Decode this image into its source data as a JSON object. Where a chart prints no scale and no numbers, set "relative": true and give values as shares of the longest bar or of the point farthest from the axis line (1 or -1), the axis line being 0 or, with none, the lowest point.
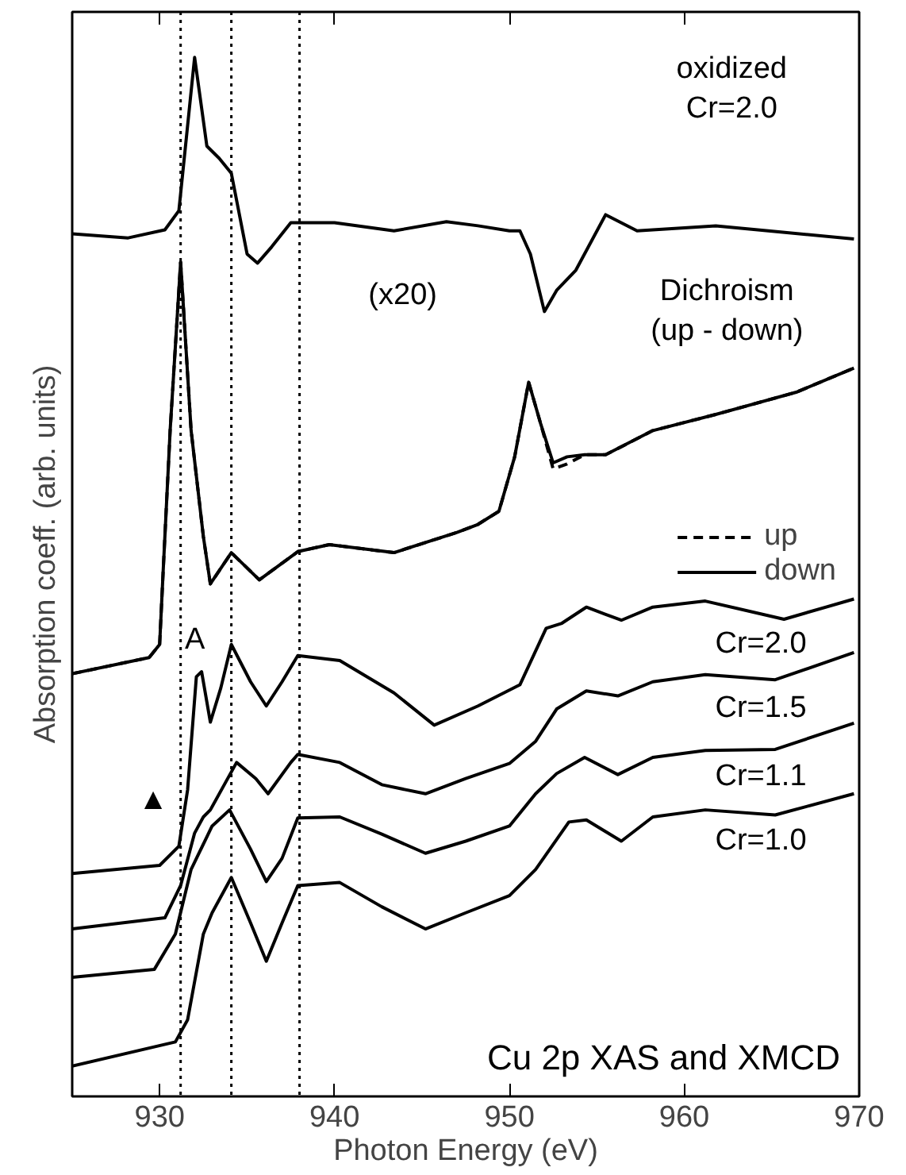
{
  "chart_data": {
    "type": "line",
    "relative": true,
    "xlabel": "Photon Energy (eV)",
    "ylabel": "Absorption coeff. (arb. units)",
    "xlim": [
      925,
      970
    ],
    "xticks": [
      930,
      940,
      950,
      960,
      970
    ],
    "grid": false,
    "legend": "right",
    "tick_labels": "x",
    "line_style": "solid",
    "series": [
      {
        "color": "#000000",
        "x": [
          925.0,
          928.2,
          930.3,
          931.1,
          932.0,
          932.7,
          933.4,
          934.1,
          935.0,
          935.6,
          936.4,
          937.5,
          940.0,
          943.4,
          946.4,
          948.2,
          950.0,
          950.6,
          951.2,
          952.0,
          952.7,
          953.8,
          955.5,
          957.3,
          961.8,
          964.8,
          969.7
        ],
        "values": [
          0.825,
          0.821,
          0.829,
          0.848,
          1.0,
          0.912,
          0.9,
          0.885,
          0.805,
          0.796,
          0.812,
          0.836,
          0.836,
          0.828,
          0.837,
          0.833,
          0.828,
          0.828,
          0.805,
          0.748,
          0.769,
          0.789,
          0.844,
          0.828,
          0.833,
          0.828,
          0.82
        ]
      },
      {
        "name": "up",
        "color": "#000000",
        "line_style": "dashed",
        "x": [
          925.0,
          929.4,
          930.0,
          930.2,
          930.6,
          931.2,
          931.8,
          932.5,
          932.9,
          934.1,
          935.7,
          937.9,
          939.7,
          943.4,
          947.0,
          948.2,
          949.4,
          950.3,
          951.1,
          951.8,
          952.5,
          953.3,
          954.3,
          955.5,
          958.2,
          961.8,
          966.4,
          969.7
        ],
        "values": [
          0.389,
          0.405,
          0.418,
          0.49,
          0.63,
          0.797,
          0.63,
          0.525,
          0.478,
          0.509,
          0.482,
          0.51,
          0.517,
          0.509,
          0.529,
          0.537,
          0.55,
          0.604,
          0.678,
          0.636,
          0.592,
          0.597,
          0.606,
          0.606,
          0.63,
          0.646,
          0.668,
          0.692
        ]
      },
      {
        "name": "down",
        "color": "#000000",
        "line_style": "solid",
        "x": [
          925.0,
          929.4,
          930.0,
          930.2,
          930.6,
          931.2,
          931.8,
          932.5,
          932.9,
          934.1,
          935.7,
          937.9,
          939.7,
          943.4,
          947.0,
          948.2,
          949.4,
          950.3,
          951.1,
          951.8,
          952.5,
          953.3,
          954.3,
          955.5,
          958.2,
          961.8,
          966.4,
          969.7
        ],
        "values": [
          0.389,
          0.405,
          0.418,
          0.49,
          0.63,
          0.797,
          0.63,
          0.525,
          0.478,
          0.509,
          0.482,
          0.51,
          0.517,
          0.509,
          0.529,
          0.537,
          0.55,
          0.604,
          0.678,
          0.636,
          0.598,
          0.604,
          0.606,
          0.606,
          0.63,
          0.646,
          0.668,
          0.692
        ]
      },
      {
        "color": "#000000",
        "x": [
          925.0,
          930.0,
          931.1,
          931.6,
          932.1,
          932.4,
          932.9,
          933.5,
          934.1,
          935.2,
          936.1,
          937.0,
          937.9,
          940.3,
          943.4,
          945.7,
          948.2,
          950.6,
          952.1,
          953.0,
          954.4,
          956.4,
          958.2,
          961.2,
          965.7,
          969.7
        ],
        "values": [
          0.191,
          0.199,
          0.218,
          0.274,
          0.386,
          0.391,
          0.341,
          0.375,
          0.418,
          0.381,
          0.357,
          0.381,
          0.407,
          0.402,
          0.37,
          0.338,
          0.357,
          0.378,
          0.434,
          0.439,
          0.455,
          0.442,
          0.455,
          0.461,
          0.443,
          0.463
        ]
      },
      {
        "color": "#000000",
        "x": [
          925.0,
          930.3,
          931.2,
          932.0,
          932.5,
          932.9,
          934.4,
          935.5,
          936.2,
          937.5,
          937.9,
          940.3,
          942.7,
          945.2,
          947.5,
          950.0,
          951.5,
          952.7,
          954.4,
          956.2,
          958.2,
          961.2,
          965.2,
          969.7
        ],
        "values": [
          0.136,
          0.147,
          0.179,
          0.231,
          0.247,
          0.254,
          0.301,
          0.285,
          0.27,
          0.301,
          0.309,
          0.301,
          0.279,
          0.27,
          0.285,
          0.3,
          0.322,
          0.354,
          0.372,
          0.367,
          0.381,
          0.388,
          0.383,
          0.41
        ]
      },
      {
        "color": "#000000",
        "x": [
          925.0,
          929.7,
          930.9,
          931.8,
          933.0,
          934.0,
          935.2,
          936.1,
          937.0,
          937.9,
          940.3,
          942.7,
          945.2,
          947.5,
          950.0,
          951.5,
          952.7,
          954.3,
          956.2,
          958.2,
          961.2,
          965.2,
          969.7
        ],
        "values": [
          0.088,
          0.096,
          0.131,
          0.195,
          0.238,
          0.254,
          0.215,
          0.183,
          0.206,
          0.246,
          0.247,
          0.23,
          0.211,
          0.223,
          0.238,
          0.27,
          0.29,
          0.306,
          0.289,
          0.306,
          0.313,
          0.314,
          0.34
        ]
      },
      {
        "color": "#000000",
        "x": [
          925.0,
          930.9,
          931.6,
          932.5,
          933.0,
          934.1,
          935.2,
          936.1,
          937.0,
          937.9,
          940.3,
          942.7,
          945.2,
          947.5,
          950.0,
          951.5,
          953.4,
          954.4,
          956.4,
          958.2,
          961.2,
          965.2,
          969.7
        ],
        "values": [
          0.0,
          0.024,
          0.046,
          0.131,
          0.152,
          0.187,
          0.142,
          0.104,
          0.142,
          0.179,
          0.182,
          0.158,
          0.136,
          0.152,
          0.169,
          0.195,
          0.242,
          0.244,
          0.223,
          0.247,
          0.254,
          0.249,
          0.27
        ]
      }
    ],
    "ref_lines": [
      {
        "axis": "x",
        "value": 931.2,
        "line_style": "dotted"
      },
      {
        "axis": "x",
        "value": 934.1,
        "line_style": "dotted"
      },
      {
        "axis": "x",
        "value": 938.0,
        "line_style": "dotted"
      }
    ],
    "annotations": [
      "oxidized\nCr=2.0",
      "(x20)",
      "Dichroism\n(up - down)",
      "A",
      "▲",
      "Cr=2.0",
      "Cr=1.5",
      "Cr=1.1",
      "Cr=1.0",
      "Cu 2p XAS and XMCD"
    ]
  }
}
